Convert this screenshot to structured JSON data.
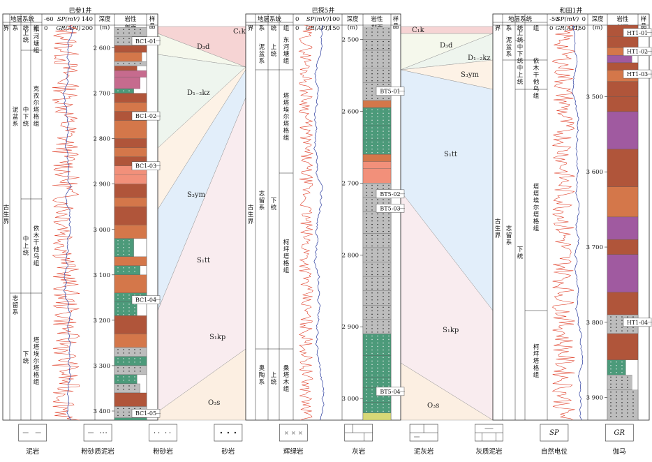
{
  "wells": [
    {
      "id": "w1",
      "name": "巴参1井",
      "headers": {
        "stratigraphy": "地层系统",
        "erathem": "界",
        "system": "系",
        "series": "统",
        "formation": "组",
        "depth": "深度",
        "depth_unit": "(m)",
        "lithology_col": "岩性",
        "lithology_col2": "剖面",
        "sample_col": "样品"
      },
      "log_sp": {
        "min": "-60",
        "label": "SP(mV)",
        "max": "140"
      },
      "log_gr": {
        "min": "0",
        "label": "GR(API)",
        "max": "200"
      },
      "depth_range": [
        2550,
        3420
      ],
      "depth_ticks": [
        2600,
        2700,
        2800,
        2900,
        3000,
        3100,
        3200,
        3300,
        3400
      ],
      "erathem": "古生界",
      "systems": [
        "泥盆系",
        "志留系"
      ],
      "series": [
        "上统",
        "中下统",
        "中上统",
        "下统"
      ],
      "formations": [
        "东河塘组",
        "克孜尔塔格组",
        "依木干他乌组",
        "塔塔埃尔塔格组"
      ],
      "samples": [
        "BC1-01",
        "BC1-02",
        "BC1-03",
        "BC1-04",
        "BC1-05"
      ]
    },
    {
      "id": "w2",
      "name": "巴探5井",
      "headers": {
        "stratigraphy": "地层系统",
        "erathem": "界",
        "system": "系",
        "series": "统",
        "formation": "组",
        "depth": "深度",
        "depth_unit": "(m)",
        "lithology_col": "岩性",
        "lithology_col2": "剖面",
        "sample_col": "样品"
      },
      "log_sp": {
        "min": "0",
        "label": "SP(mV)",
        "max": "100"
      },
      "log_gr": {
        "min": "0",
        "label": "GR(API)",
        "max": "150"
      },
      "depth_range": [
        2480,
        3030
      ],
      "depth_ticks": [
        2500,
        2600,
        2700,
        2800,
        2900,
        3000
      ],
      "erathem": "古生界",
      "systems": [
        "泥盆系",
        "志留系",
        "奥陶系"
      ],
      "series": [
        "上统",
        "下统",
        "上统"
      ],
      "formations": [
        "东河塘组",
        "塔塔埃尔塔格组",
        "柯坪塔格组",
        "桑塔木组"
      ],
      "samples": [
        "BT5-01",
        "BT5-02",
        "BT5-03",
        "BT5-04"
      ]
    },
    {
      "id": "w3",
      "name": "和田1井",
      "headers": {
        "stratigraphy": "地层系统",
        "erathem": "界",
        "system": "系",
        "series": "统",
        "formation": "组",
        "depth": "深度",
        "depth_unit": "(m)",
        "lithology_col": "岩性",
        "lithology_col2": "剖面",
        "sample_col": "样品"
      },
      "log_sp": {
        "min": "-50",
        "label": "SP(mV)",
        "max": "0"
      },
      "log_gr": {
        "min": "0",
        "label": "GR(API)",
        "max": "150"
      },
      "depth_range": [
        3405,
        3930
      ],
      "depth_ticks": [
        3500,
        3600,
        3700,
        3800,
        3900
      ],
      "erathem": "古生界",
      "systems": [
        "泥盆系",
        "志留系"
      ],
      "series": [
        "上统",
        "中下统",
        "中上统",
        "下统"
      ],
      "formations": [
        "依木干他乌组",
        "塔塔埃尔塔格组",
        "柯坪塔格组"
      ],
      "samples": [
        "HT1-01",
        "HT1-02",
        "HT1-03",
        "HT1-04"
      ]
    }
  ],
  "correlation_units": [
    "C₁k",
    "D₃d",
    "D₁₋₂kz",
    "S₃ym",
    "S₁tt",
    "S₁kp",
    "O₃s"
  ],
  "correlation_colors": {
    "C1k": "#f6d4d4",
    "D3d": "#f5f8ec",
    "D12kz": "#eef5ee",
    "S3ym": "#fdf2e6",
    "S1tt": "#e2eefa",
    "S1kp": "#f9ecef",
    "O3s": "#fcefe2"
  },
  "lith_colors": {
    "mudstone": "#b0553a",
    "silt_mud": "#d4774a",
    "siltstone": "#4c9a7a",
    "sandstone": "#bdbdbd",
    "pink": "#c66b8e",
    "salmon": "#f2907a",
    "yellow": "#d8d877",
    "purple": "#a05aa0"
  },
  "log_colors": {
    "sp": "#e0402a",
    "gr": "#4050a8"
  },
  "legend": [
    {
      "key": "mudstone",
      "label": "泥岩"
    },
    {
      "key": "silt_mud",
      "label": "粉砂质泥岩"
    },
    {
      "key": "siltstone",
      "label": "粉砂岩"
    },
    {
      "key": "sandstone",
      "label": "砂岩"
    },
    {
      "key": "diabase",
      "label": "辉绿岩"
    },
    {
      "key": "limestone",
      "label": "灰岩"
    },
    {
      "key": "marl",
      "label": "泥灰岩"
    },
    {
      "key": "lime_mud",
      "label": "灰质泥岩"
    },
    {
      "key": "sp",
      "label": "自然电位"
    },
    {
      "key": "gr",
      "label": "伽马"
    }
  ],
  "legend_sym": {
    "sp": "SP",
    "gr": "GR"
  }
}
